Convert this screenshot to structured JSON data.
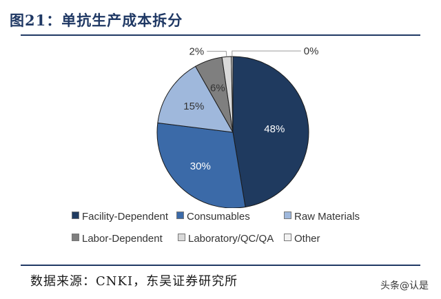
{
  "figure": {
    "title": "图21：单抗生产成本拆分",
    "source": "数据来源：CNKI，东吴证券研究所",
    "watermark": "头条@认是"
  },
  "chart_data": {
    "type": "pie",
    "title": "",
    "legend_position": "bottom",
    "slices": [
      {
        "name": "Facility-Dependent",
        "value": 48,
        "label": "48%",
        "color": "#1f3a5f"
      },
      {
        "name": "Consumables",
        "value": 30,
        "label": "30%",
        "color": "#3b6aa8"
      },
      {
        "name": "Raw Materials",
        "value": 15,
        "label": "15%",
        "color": "#9fb8dc"
      },
      {
        "name": "Labor-Dependent",
        "value": 6,
        "label": "6%",
        "color": "#7f7f7f"
      },
      {
        "name": "Laboratory/QC/QA",
        "value": 2,
        "label": "2%",
        "color": "#d9d9d9"
      },
      {
        "name": "Other",
        "value": 0,
        "label": "0%",
        "color": "#f2f2f2"
      }
    ]
  }
}
